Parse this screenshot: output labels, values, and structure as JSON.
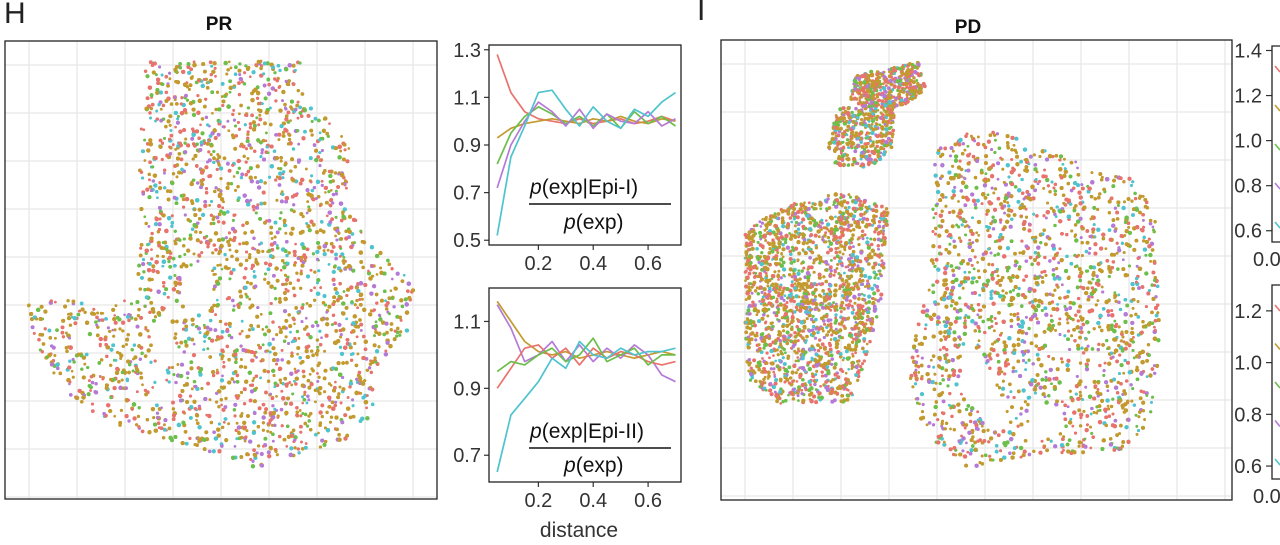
{
  "figure": {
    "panel_h": "H",
    "panel_i": "I",
    "map_pr_title": "PR",
    "map_pd_title": "PD",
    "xlabel": "distance",
    "ratio1_numerator": "exp|Epi-I)",
    "ratio2_numerator": "exp|Epi-II)",
    "ratio_denominator": "exp)",
    "ratio_p": "p",
    "ratio_paren": "("
  },
  "colors": {
    "red": "#e8736c",
    "gold": "#c39a2e",
    "green": "#6cbf4a",
    "cyan": "#4fc4cf",
    "purple": "#b57ad6",
    "frame": "#222222"
  },
  "chart_data": [
    {
      "type": "scatter",
      "title": "PR",
      "description_series": [
        "red",
        "gold",
        "green",
        "cyan",
        "purple"
      ]
    },
    {
      "type": "line",
      "title": "p(exp|Epi-I)/p(exp)",
      "xlabel": "",
      "ylabel": "",
      "xlim": [
        0.02,
        0.72
      ],
      "ylim": [
        0.48,
        1.32
      ],
      "xticks": [
        0.2,
        0.4,
        0.6
      ],
      "yticks": [
        0.5,
        0.7,
        0.9,
        1.1,
        1.3
      ],
      "x": [
        0.05,
        0.1,
        0.15,
        0.2,
        0.25,
        0.3,
        0.35,
        0.4,
        0.45,
        0.5,
        0.55,
        0.6,
        0.65,
        0.7
      ],
      "series": [
        {
          "name": "red",
          "color": "red",
          "values": [
            1.28,
            1.12,
            1.04,
            1.01,
            1.0,
            0.99,
            1.01,
            0.99,
            1.0,
            1.01,
            0.99,
            1.0,
            1.02,
            1.0
          ]
        },
        {
          "name": "gold",
          "color": "gold",
          "values": [
            0.93,
            0.97,
            0.99,
            1.0,
            1.01,
            1.0,
            0.99,
            1.01,
            1.0,
            1.02,
            1.0,
            0.99,
            1.01,
            1.0
          ]
        },
        {
          "name": "green",
          "color": "green",
          "values": [
            0.82,
            0.95,
            1.02,
            1.06,
            1.03,
            0.99,
            1.02,
            0.98,
            1.03,
            0.97,
            1.04,
            0.99,
            1.02,
            0.98
          ]
        },
        {
          "name": "purple",
          "color": "purple",
          "values": [
            0.72,
            0.9,
            1.0,
            1.08,
            1.04,
            0.98,
            1.05,
            0.97,
            1.03,
            1.0,
            0.99,
            1.04,
            0.98,
            1.01
          ]
        },
        {
          "name": "cyan",
          "color": "cyan",
          "values": [
            0.52,
            0.85,
            0.98,
            1.12,
            1.13,
            1.05,
            0.98,
            1.06,
            1.0,
            0.97,
            1.05,
            1.02,
            1.08,
            1.12
          ]
        }
      ]
    },
    {
      "type": "line",
      "title": "p(exp|Epi-II)/p(exp)",
      "xlabel": "distance",
      "ylabel": "",
      "xlim": [
        0.02,
        0.72
      ],
      "ylim": [
        0.62,
        1.2
      ],
      "xticks": [
        0.2,
        0.4,
        0.6
      ],
      "yticks": [
        0.7,
        0.9,
        1.1
      ],
      "x": [
        0.05,
        0.1,
        0.15,
        0.2,
        0.25,
        0.3,
        0.35,
        0.4,
        0.45,
        0.5,
        0.55,
        0.6,
        0.65,
        0.7
      ],
      "series": [
        {
          "name": "gold",
          "color": "gold",
          "values": [
            1.16,
            1.1,
            1.04,
            1.01,
            1.0,
            1.01,
            0.99,
            1.0,
            1.01,
            1.0,
            0.99,
            1.0,
            1.01,
            1.0
          ]
        },
        {
          "name": "purple",
          "color": "purple",
          "values": [
            1.15,
            1.08,
            0.98,
            1.0,
            1.04,
            0.98,
            1.03,
            0.98,
            1.02,
            0.99,
            1.03,
            1.0,
            0.94,
            0.92
          ]
        },
        {
          "name": "red",
          "color": "red",
          "values": [
            0.9,
            0.96,
            1.02,
            1.03,
            0.99,
            1.02,
            0.97,
            1.02,
            0.99,
            1.01,
            1.0,
            0.98,
            0.97,
            0.98
          ]
        },
        {
          "name": "green",
          "color": "green",
          "values": [
            0.95,
            0.98,
            0.97,
            1.0,
            1.02,
            0.98,
            1.0,
            1.05,
            0.98,
            1.0,
            1.02,
            0.97,
            1.0,
            1.0
          ]
        },
        {
          "name": "cyan",
          "color": "cyan",
          "values": [
            0.65,
            0.82,
            0.87,
            0.92,
            0.99,
            0.96,
            1.04,
            1.0,
            0.99,
            1.02,
            1.0,
            1.01,
            1.01,
            1.02
          ]
        }
      ]
    },
    {
      "type": "scatter",
      "title": "PD",
      "description_series": [
        "red",
        "gold",
        "green",
        "cyan",
        "purple"
      ]
    },
    {
      "type": "line",
      "title": "",
      "ylim": [
        0.55,
        1.42
      ],
      "yticks": [
        0.6,
        0.8,
        1.0,
        1.2,
        1.4
      ],
      "xtick_partial": "0.0",
      "series": []
    },
    {
      "type": "line",
      "title": "",
      "ylim": [
        0.55,
        1.3
      ],
      "yticks": [
        0.6,
        0.8,
        1.0,
        1.2
      ],
      "xtick_partial": "0.0",
      "series": []
    }
  ]
}
